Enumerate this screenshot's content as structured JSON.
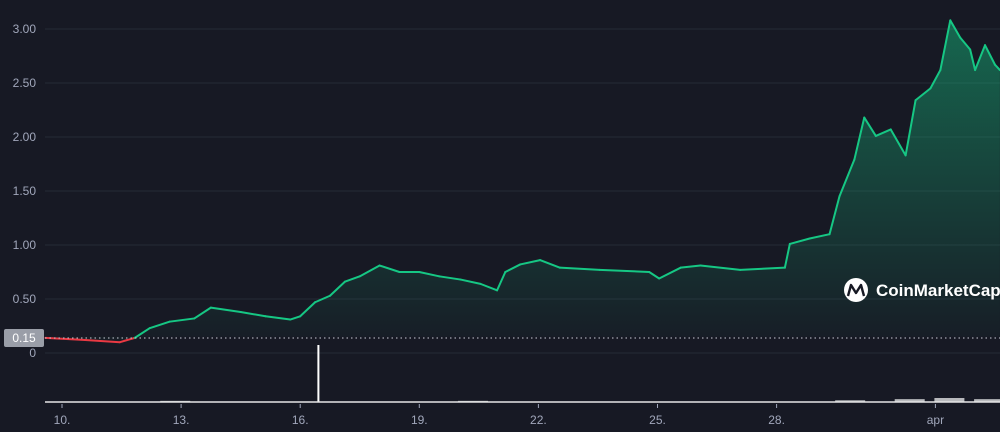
{
  "chart_data": {
    "type": "area",
    "title": "",
    "xlabel": "",
    "ylabel": "",
    "ylim": [
      0,
      3.1
    ],
    "y_ticks": [
      "0.50",
      "1.00",
      "1.50",
      "2.00",
      "2.50",
      "3.00"
    ],
    "x_ticks": [
      {
        "label": "10.",
        "date": "Mar 10 00:00"
      },
      {
        "label": "13.",
        "date": "Mar 13 00:00"
      },
      {
        "label": "16.",
        "date": "Mar 16 00:00"
      },
      {
        "label": "19.",
        "date": "Mar 19 00:00"
      },
      {
        "label": "22.",
        "date": "Mar 22 00:00"
      },
      {
        "label": "25.",
        "date": "Mar 25 00:00"
      },
      {
        "label": "28.",
        "date": "Mar 28 00:00"
      },
      {
        "label": "apr",
        "date": "Apr 1 00:00"
      }
    ],
    "baseline": {
      "value": 0.15,
      "label": "0.15"
    },
    "volume_zero_label": "0",
    "grid": true,
    "colors": {
      "up": "#16c784",
      "down": "#ea3943",
      "background": "#171924",
      "grid": "#262a36",
      "volume": "#ffffff"
    },
    "watermark": "CoinMarketCap",
    "series": [
      {
        "points": [
          [
            "Mar 9 14:00",
            0.14
          ],
          [
            "Mar 10 14:00",
            0.12
          ],
          [
            "Mar 11 11:00",
            0.1
          ],
          [
            "Mar 11 20:00",
            0.14
          ],
          [
            "Mar 12 05:00",
            0.23
          ],
          [
            "Mar 12 17:00",
            0.29
          ],
          [
            "Mar 13 08:00",
            0.32
          ],
          [
            "Mar 13 18:00",
            0.42
          ],
          [
            "Mar 14 12:00",
            0.38
          ],
          [
            "Mar 15 03:00",
            0.34
          ],
          [
            "Mar 15 18:00",
            0.31
          ],
          [
            "Mar 16 00:00",
            0.34
          ],
          [
            "Mar 16 09:00",
            0.47
          ],
          [
            "Mar 16 18:00",
            0.53
          ],
          [
            "Mar 17 03:00",
            0.66
          ],
          [
            "Mar 17 12:00",
            0.71
          ],
          [
            "Mar 18 00:00",
            0.81
          ],
          [
            "Mar 18 12:00",
            0.75
          ],
          [
            "Mar 19 00:00",
            0.75
          ],
          [
            "Mar 19 12:00",
            0.71
          ],
          [
            "Mar 20 01:00",
            0.68
          ],
          [
            "Mar 20 13:00",
            0.64
          ],
          [
            "Mar 20 23:00",
            0.58
          ],
          [
            "Mar 21 04:00",
            0.75
          ],
          [
            "Mar 21 13:00",
            0.82
          ],
          [
            "Mar 22 01:00",
            0.86
          ],
          [
            "Mar 22 13:00",
            0.79
          ],
          [
            "Mar 23 13:00",
            0.77
          ],
          [
            "Mar 24 19:00",
            0.75
          ],
          [
            "Mar 25 01:00",
            0.69
          ],
          [
            "Mar 25 14:00",
            0.79
          ],
          [
            "Mar 26 02:00",
            0.81
          ],
          [
            "Mar 27 02:00",
            0.77
          ],
          [
            "Mar 28 05:00",
            0.79
          ],
          [
            "Mar 28 08:00",
            1.01
          ],
          [
            "Mar 28 20:00",
            1.06
          ],
          [
            "Mar 29 08:00",
            1.1
          ],
          [
            "Mar 29 14:00",
            1.45
          ],
          [
            "Mar 29 23:00",
            1.79
          ],
          [
            "Mar 30 05:00",
            2.18
          ],
          [
            "Mar 30 12:00",
            2.01
          ],
          [
            "Mar 30 21:00",
            2.07
          ],
          [
            "Mar 31 06:00",
            1.83
          ],
          [
            "Mar 31 12:00",
            2.34
          ],
          [
            "Mar 31 21:00",
            2.45
          ],
          [
            "Apr 1 03:00",
            2.62
          ],
          [
            "Apr 1 09:00",
            3.08
          ],
          [
            "Apr 1 15:00",
            2.92
          ],
          [
            "Apr 1 21:00",
            2.81
          ],
          [
            "Apr 2 00:00",
            2.62
          ],
          [
            "Apr 2 06:00",
            2.85
          ],
          [
            "Apr 2 12:00",
            2.67
          ],
          [
            "Apr 2 15:00",
            2.62
          ]
        ]
      }
    ],
    "volume": [
      [
        "Mar 12 12:00",
        0.02
      ],
      [
        "Mar 16 11:00",
        1.0
      ],
      [
        "Mar 20 00:00",
        0.02
      ],
      [
        "Mar 29 12:00",
        0.03
      ],
      [
        "Mar 31 00:00",
        0.05
      ],
      [
        "Apr 1 00:00",
        0.07
      ],
      [
        "Apr 2 00:00",
        0.05
      ]
    ]
  }
}
